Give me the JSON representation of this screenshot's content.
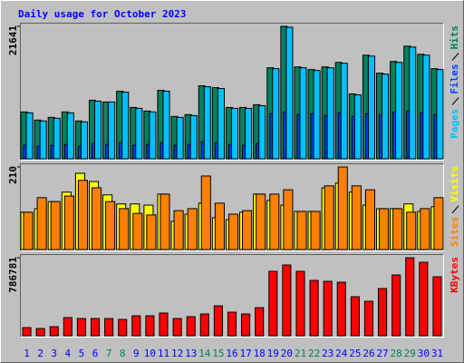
{
  "chart_data": {
    "type": "bar",
    "title": "Daily usage for October 2023",
    "title_color": "#0000ff",
    "categories": [
      "1",
      "2",
      "3",
      "4",
      "5",
      "6",
      "7",
      "8",
      "9",
      "10",
      "11",
      "12",
      "13",
      "14",
      "15",
      "16",
      "17",
      "18",
      "19",
      "20",
      "21",
      "22",
      "23",
      "24",
      "25",
      "26",
      "27",
      "28",
      "29",
      "30",
      "31"
    ],
    "weekend_indices": [
      6,
      7,
      13,
      14,
      20,
      21,
      27,
      28
    ],
    "weekday_color": "#0000ff",
    "weekend_color": "#00805c",
    "panels": [
      {
        "ylim": [
          0,
          21641
        ],
        "yticks": [
          21641
        ],
        "series": [
          {
            "name": "Hits",
            "color": "#00805c",
            "values": [
              7654,
              6330,
              6771,
              7654,
              6182,
              9568,
              9274,
              11040,
              8390,
              7802,
              11187,
              6918,
              7213,
              11923,
              11629,
              8390,
              8390,
              8832,
              14867,
              21641,
              15014,
              14573,
              15014,
              15750,
              10598,
              16928,
              13984,
              15898,
              18400,
              17075,
              14720
            ]
          },
          {
            "name": "Files",
            "color": "#0040ff",
            "values": [
              2208,
              2061,
              2208,
              2355,
              2061,
              2502,
              2355,
              2649,
              2208,
              2355,
              2649,
              2208,
              2355,
              2796,
              2649,
              2355,
              2208,
              2502,
              7360,
              7654,
              7213,
              7360,
              7066,
              7507,
              6918,
              7360,
              7213,
              7654,
              7801,
              7507,
              7213
            ]
          },
          {
            "name": "Pages",
            "color": "#00c0ff",
            "values": [
              7507,
              6183,
              6624,
              7507,
              6035,
              9421,
              9274,
              10893,
              8243,
              7655,
              11040,
              6771,
              7066,
              11776,
              11482,
              8243,
              8243,
              8685,
              14720,
              21494,
              14867,
              14426,
              14867,
              15603,
              10451,
              16781,
              13837,
              15751,
              18253,
              16928,
              14573
            ]
          }
        ]
      },
      {
        "ylim": [
          0,
          210
        ],
        "yticks": [
          210
        ],
        "series": [
          {
            "name": "Visits",
            "color": "#ffff00",
            "values": [
              95,
              104,
              122,
              146,
              194,
              173,
              139,
              116,
              116,
              113,
              141,
              72,
              90,
              118,
              81,
              76,
              95,
              141,
              125,
              113,
              97,
              97,
              157,
              169,
              146,
              113,
              104,
              104,
              116,
              97,
              109
            ]
          },
          {
            "name": "Sites",
            "color": "#ff8000",
            "values": [
              95,
              132,
              122,
              136,
              176,
              157,
              122,
              104,
              92,
              88,
              141,
              99,
              104,
              187,
              118,
              90,
              99,
              141,
              141,
              152,
              97,
              97,
              162,
              210,
              162,
              152,
              104,
              104,
              95,
              104,
              132
            ]
          }
        ]
      },
      {
        "ylim": [
          0,
          786781
        ],
        "yticks": [
          786781
        ],
        "series": [
          {
            "name": "KBytes",
            "color": "#ff0000",
            "values": [
              82341,
              73192,
              91490,
              182980,
              173831,
              173831,
              173831,
              164682,
              201278,
              201278,
              228725,
              173831,
              192129,
              219576,
              301917,
              237874,
              219576,
              283619,
              649579,
              713622,
              649579,
              558089,
              548940,
              539791,
              393407,
              347662,
              475748,
              612983,
              786781,
              741069,
              594685
            ]
          }
        ]
      }
    ]
  }
}
